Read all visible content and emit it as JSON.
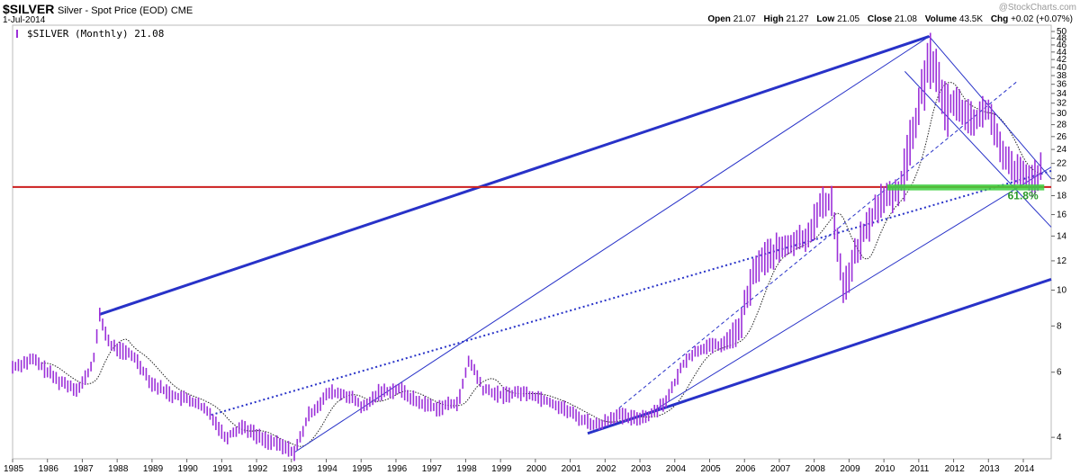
{
  "header": {
    "symbol": "$SILVER",
    "description": "Silver - Spot Price (EOD)",
    "exchange": "CME",
    "date": "1-Jul-2014",
    "watermark": "@StockCharts.com",
    "ohlc": {
      "open_label": "Open",
      "open": "21.07",
      "high_label": "High",
      "high": "21.27",
      "low_label": "Low",
      "low": "21.05",
      "close_label": "Close",
      "close": "21.08",
      "volume_label": "Volume",
      "volume": "43.5K",
      "chg_label": "Chg",
      "chg": "+0.02 (+0.07%)"
    }
  },
  "legend": {
    "text": "$SILVER (Monthly) 21.08"
  },
  "chart_data": {
    "type": "bar",
    "title": "$SILVER Silver - Spot Price (EOD) CME",
    "series_name": "$SILVER (Monthly)",
    "y_scale": "log",
    "ylim": [
      3.5,
      52
    ],
    "y_ticks": [
      4,
      6,
      8,
      10,
      12,
      14,
      16,
      18,
      20,
      22,
      24,
      26,
      28,
      30,
      32,
      34,
      36,
      38,
      40,
      42,
      44,
      46,
      48,
      50
    ],
    "x_ticks": [
      "1985",
      "1986",
      "1987",
      "1988",
      "1989",
      "1990",
      "1991",
      "1992",
      "1993",
      "1994",
      "1995",
      "1996",
      "1997",
      "1998",
      "1999",
      "2000",
      "2001",
      "2002",
      "2003",
      "2004",
      "2005",
      "2006",
      "2007",
      "2008",
      "2009",
      "2010",
      "2011",
      "2012",
      "2013",
      "2014"
    ],
    "xlim": [
      1985.0,
      2014.8
    ],
    "price_anchors": [
      [
        1985.0,
        6.2
      ],
      [
        1985.6,
        6.5
      ],
      [
        1986.3,
        5.7
      ],
      [
        1986.9,
        5.4
      ],
      [
        1987.3,
        6.3
      ],
      [
        1987.5,
        8.5
      ],
      [
        1987.8,
        7.1
      ],
      [
        1988.5,
        6.6
      ],
      [
        1989.0,
        5.6
      ],
      [
        1989.6,
        5.2
      ],
      [
        1990.2,
        5.0
      ],
      [
        1990.7,
        4.6
      ],
      [
        1991.1,
        4.0
      ],
      [
        1991.6,
        4.3
      ],
      [
        1992.1,
        4.0
      ],
      [
        1992.7,
        3.8
      ],
      [
        1993.1,
        3.65
      ],
      [
        1993.5,
        4.6
      ],
      [
        1994.1,
        5.3
      ],
      [
        1994.6,
        5.2
      ],
      [
        1995.1,
        4.8
      ],
      [
        1995.5,
        5.3
      ],
      [
        1996.1,
        5.4
      ],
      [
        1996.6,
        5.0
      ],
      [
        1997.2,
        4.8
      ],
      [
        1997.8,
        5.0
      ],
      [
        1998.1,
        6.5
      ],
      [
        1998.5,
        5.4
      ],
      [
        1999.0,
        5.2
      ],
      [
        1999.6,
        5.3
      ],
      [
        2000.2,
        5.1
      ],
      [
        2000.8,
        4.8
      ],
      [
        2001.3,
        4.5
      ],
      [
        2001.8,
        4.3
      ],
      [
        2002.3,
        4.6
      ],
      [
        2002.8,
        4.5
      ],
      [
        2003.3,
        4.6
      ],
      [
        2003.8,
        5.1
      ],
      [
        2004.3,
        6.5
      ],
      [
        2004.8,
        7.0
      ],
      [
        2005.3,
        7.1
      ],
      [
        2005.8,
        7.6
      ],
      [
        2006.3,
        11.5
      ],
      [
        2006.7,
        12.5
      ],
      [
        2007.3,
        13.3
      ],
      [
        2007.8,
        14.0
      ],
      [
        2008.2,
        17.0
      ],
      [
        2008.5,
        17.5
      ],
      [
        2008.85,
        10.0
      ],
      [
        2009.3,
        13.5
      ],
      [
        2009.9,
        17.5
      ],
      [
        2010.4,
        18.3
      ],
      [
        2010.9,
        28.0
      ],
      [
        2011.3,
        44.0
      ],
      [
        2011.7,
        32.0
      ],
      [
        2012.1,
        32.0
      ],
      [
        2012.6,
        29.0
      ],
      [
        2013.0,
        31.0
      ],
      [
        2013.4,
        23.0
      ],
      [
        2013.8,
        21.0
      ],
      [
        2014.2,
        20.0
      ],
      [
        2014.5,
        21.08
      ]
    ],
    "annotations": {
      "fib_label": "61.8%",
      "resistance_level": 19.0
    },
    "grid": false,
    "legend_position": "top-left"
  }
}
